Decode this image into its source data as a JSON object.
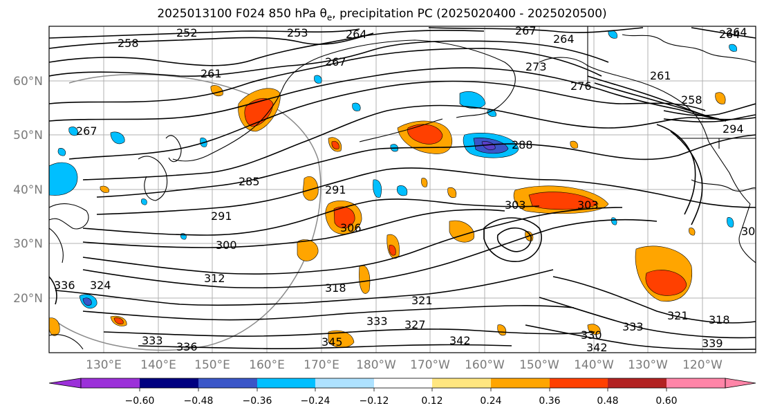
{
  "title": {
    "prefix": "2025013100 F024 850 hPa ",
    "theta": "θ",
    "theta_sub": "e",
    "suffix": ", precipitation PC (2025020400 - 2025020500)"
  },
  "map": {
    "lat_labels": [
      "60°N",
      "50°N",
      "40°N",
      "30°N",
      "20°N"
    ],
    "lon_labels": [
      "130°E",
      "140°E",
      "150°E",
      "160°E",
      "170°E",
      "180°W",
      "170°W",
      "160°W",
      "150°W",
      "140°W",
      "130°W",
      "120°W"
    ],
    "contour_labels": [
      "252",
      "253",
      "258",
      "264",
      "267",
      "264",
      "264",
      "261",
      "267",
      "273",
      "276",
      "261",
      "258",
      "264",
      "294",
      "267",
      "285",
      "288",
      "291",
      "303",
      "303",
      "291",
      "300",
      "306",
      "312",
      "324",
      "318",
      "321",
      "321",
      "318",
      "336",
      "333",
      "342",
      "333",
      "339",
      "342",
      "327",
      "345",
      "330",
      "333",
      "336",
      "30"
    ],
    "land_color": "#000000",
    "contour_color": "#000000"
  },
  "colorbar": {
    "ticks": [
      "−0.60",
      "−0.48",
      "−0.36",
      "−0.24",
      "−0.12",
      "0.12",
      "0.24",
      "0.36",
      "0.48",
      "0.60"
    ],
    "colors": [
      "#9b30d9",
      "#000080",
      "#3a56c8",
      "#00bfff",
      "#aee2ff",
      "#ffffff",
      "#ffe680",
      "#ffa500",
      "#ff4000",
      "#b22222",
      "#ff85a8"
    ],
    "under_color": "#9b30d9",
    "over_color": "#ff85a8"
  }
}
